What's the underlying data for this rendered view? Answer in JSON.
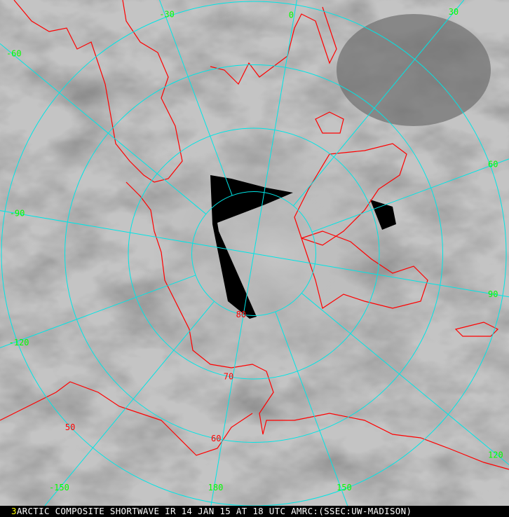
{
  "caption": {
    "frame_number": "3",
    "text": "ARCTIC COMPOSITE SHORTWAVE IR 14 JAN 15 AT 18 UTC AMRC:(SSEC:UW-MADISON)"
  },
  "projection": "polar-stereographic",
  "colors": {
    "graticule": "#00e5e5",
    "coastline": "#ff0000",
    "longitude_labels": "#00ff00",
    "latitude_labels": "#ff0000",
    "no_data": "#000000",
    "caption_frame": "#ffff00"
  },
  "longitude_labels": [
    {
      "lon": -30,
      "text": "-30"
    },
    {
      "lon": 0,
      "text": "0"
    },
    {
      "lon": 30,
      "text": "30"
    },
    {
      "lon": 60,
      "text": "60"
    },
    {
      "lon": 90,
      "text": "90"
    },
    {
      "lon": 120,
      "text": "120"
    },
    {
      "lon": 150,
      "text": "150"
    },
    {
      "lon": 180,
      "text": "180"
    },
    {
      "lon": -150,
      "text": "-150"
    },
    {
      "lon": -120,
      "text": "-120"
    },
    {
      "lon": -90,
      "text": "-90"
    },
    {
      "lon": -60,
      "text": "-60"
    }
  ],
  "latitude_labels": [
    {
      "lat": 80,
      "text": "80"
    },
    {
      "lat": 70,
      "text": "70"
    },
    {
      "lat": 60,
      "text": "60"
    },
    {
      "lat": 50,
      "text": "50"
    }
  ]
}
